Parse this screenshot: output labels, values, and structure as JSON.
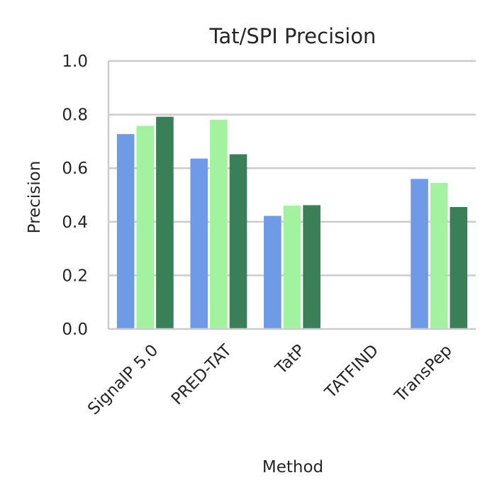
{
  "chart_data": {
    "type": "bar",
    "title": "Tat/SPI Precision",
    "xlabel": "Method",
    "ylabel": "Precision",
    "ylim": [
      0,
      1.0
    ],
    "yticks": [
      "0.0",
      "0.2",
      "0.4",
      "0.6",
      "0.8",
      "1.0"
    ],
    "categories": [
      "SignalP 5.0",
      "PRED-TAT",
      "TatP",
      "TATFIND",
      "TransPep"
    ],
    "grid": "horizontal",
    "legend": "none",
    "series": [
      {
        "color": "#6f9ae6",
        "values": [
          0.727,
          0.636,
          0.422,
          0.0,
          0.56
        ]
      },
      {
        "color": "#a2f2a0",
        "values": [
          0.758,
          0.781,
          0.46,
          0.0,
          0.545
        ]
      },
      {
        "color": "#3a7f58",
        "values": [
          0.792,
          0.652,
          0.462,
          0.0,
          0.455
        ]
      }
    ]
  }
}
